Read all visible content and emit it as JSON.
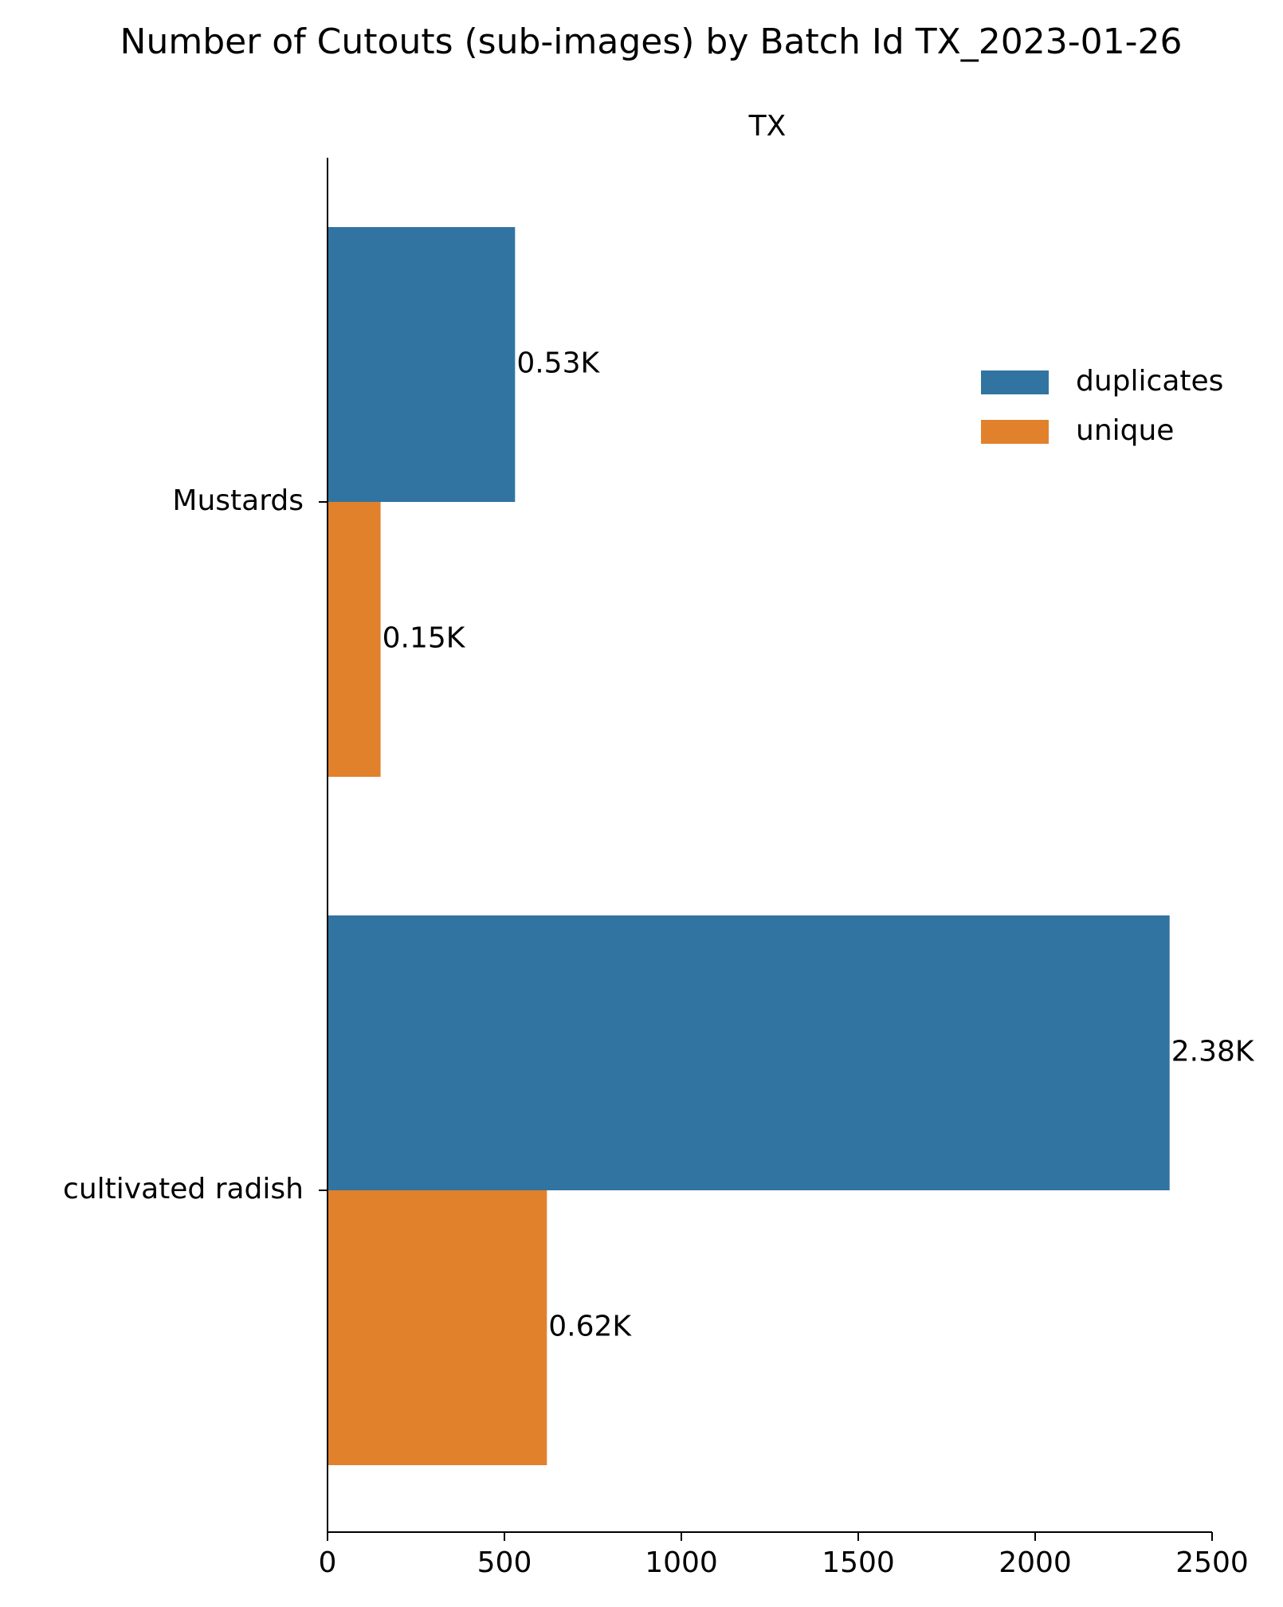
{
  "chart_data": {
    "type": "bar",
    "orientation": "horizontal",
    "title": "Number of Cutouts (sub-images) by Batch Id TX_2023-01-26",
    "facet_title": "TX",
    "categories": [
      "Mustards",
      "cultivated radish"
    ],
    "series": [
      {
        "name": "duplicates",
        "color": "#3274a1",
        "values": [
          530,
          2380
        ],
        "labels": [
          "0.53K",
          "2.38K"
        ]
      },
      {
        "name": "unique",
        "color": "#e1812c",
        "values": [
          150,
          620
        ],
        "labels": [
          "0.15K",
          "0.62K"
        ]
      }
    ],
    "x_ticks": [
      0,
      500,
      1000,
      1500,
      2000,
      2500
    ],
    "xlim": [
      0,
      2500
    ],
    "xlabel": "",
    "ylabel": "",
    "legend_position": "top-right",
    "grid": false
  }
}
